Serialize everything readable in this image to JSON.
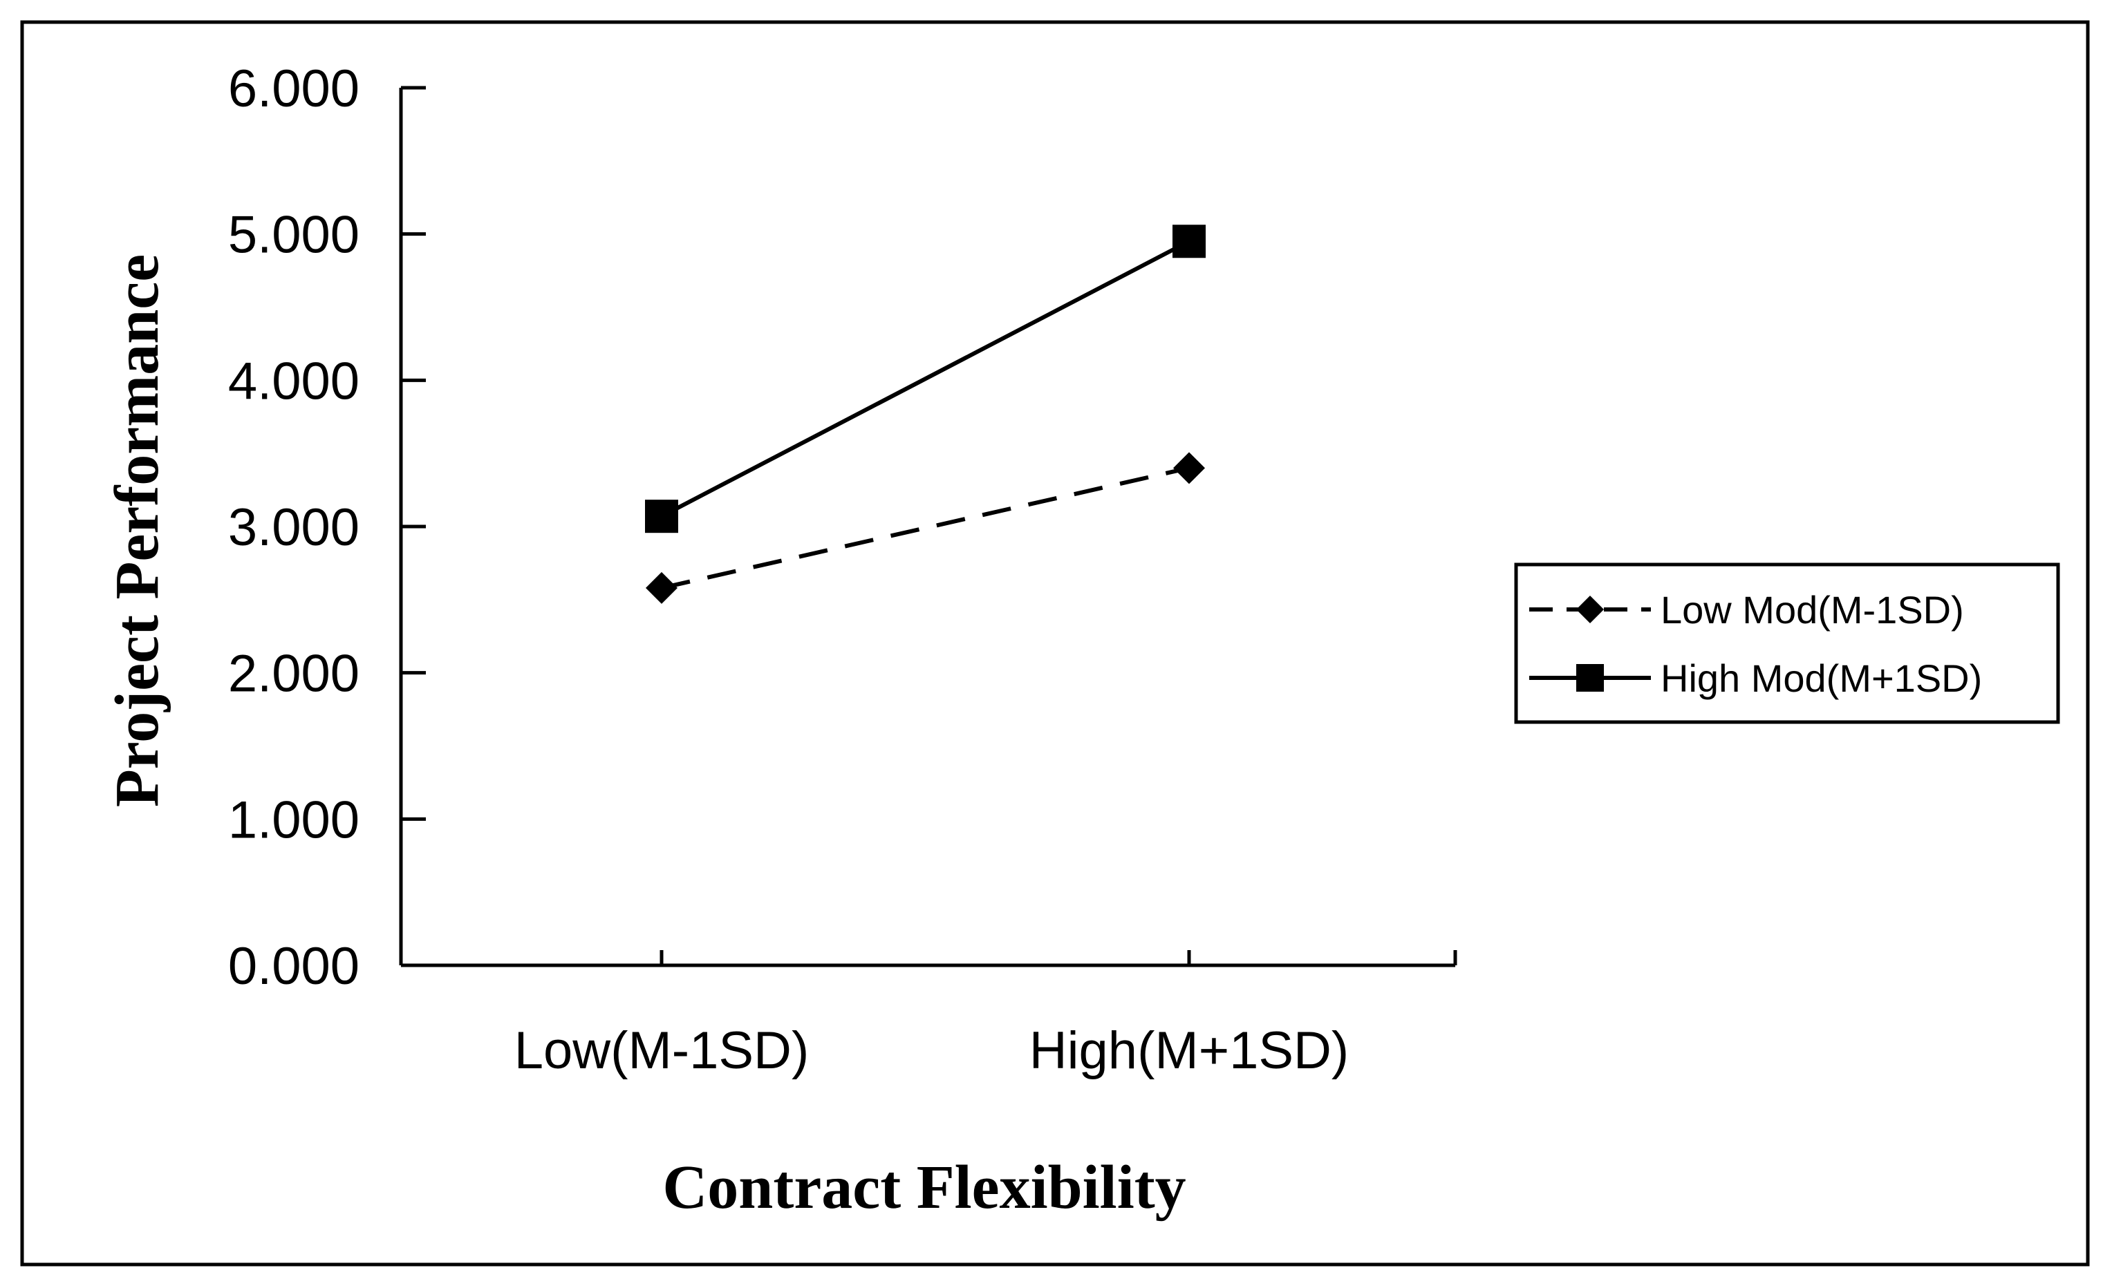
{
  "chart_data": {
    "type": "line",
    "title": "",
    "xlabel": "Contract Flexibility",
    "ylabel": "Project Performance",
    "categories": [
      "Low(M-1SD)",
      "High(M+1SD)"
    ],
    "ylim": [
      0,
      6
    ],
    "yticks": [
      0,
      1,
      2,
      3,
      4,
      5,
      6
    ],
    "ytick_labels": [
      "0.000",
      "1.000",
      "2.000",
      "3.000",
      "4.000",
      "5.000",
      "6.000"
    ],
    "grid": false,
    "legend_position": "right",
    "series": [
      {
        "name": "Low Mod(M-1SD)",
        "values": [
          2.58,
          3.4
        ],
        "line_style": "dashed",
        "marker": "diamond",
        "color": "#000000"
      },
      {
        "name": "High Mod(M+1SD)",
        "values": [
          3.07,
          4.95
        ],
        "line_style": "solid",
        "marker": "square",
        "color": "#000000"
      }
    ]
  }
}
